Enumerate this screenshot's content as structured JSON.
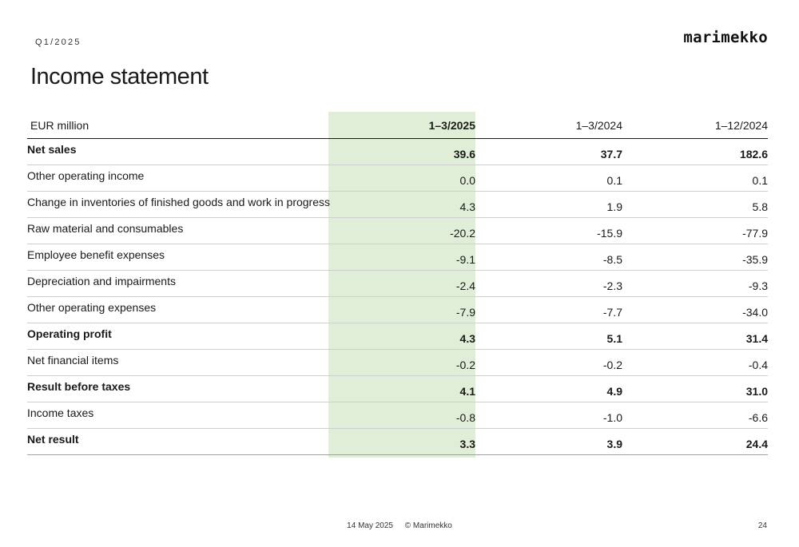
{
  "header": {
    "period": "Q1/2025",
    "logo": "marimekko",
    "title": "Income statement"
  },
  "table": {
    "columns": [
      "EUR million",
      "1–3/2025",
      "1–3/2024",
      "1–12/2024"
    ],
    "highlight_color": "#e1eed7",
    "rows": [
      {
        "label": "Net sales",
        "values": [
          "39.6",
          "37.7",
          "182.6"
        ],
        "bold": true
      },
      {
        "label": "Other operating income",
        "values": [
          "0.0",
          "0.1",
          "0.1"
        ],
        "bold": false
      },
      {
        "label": "Change in inventories of finished goods and work in progress",
        "values": [
          "4.3",
          "1.9",
          "5.8"
        ],
        "bold": false
      },
      {
        "label": "Raw material and consumables",
        "values": [
          "-20.2",
          "-15.9",
          "-77.9"
        ],
        "bold": false
      },
      {
        "label": "Employee benefit expenses",
        "values": [
          "-9.1",
          "-8.5",
          "-35.9"
        ],
        "bold": false
      },
      {
        "label": "Depreciation and impairments",
        "values": [
          "-2.4",
          "-2.3",
          "-9.3"
        ],
        "bold": false
      },
      {
        "label": "Other operating expenses",
        "values": [
          "-7.9",
          "-7.7",
          "-34.0"
        ],
        "bold": false
      },
      {
        "label": "Operating profit",
        "values": [
          "4.3",
          "5.1",
          "31.4"
        ],
        "bold": true
      },
      {
        "label": "Net financial items",
        "values": [
          "-0.2",
          "-0.2",
          "-0.4"
        ],
        "bold": false
      },
      {
        "label": "Result before taxes",
        "values": [
          "4.1",
          "4.9",
          "31.0"
        ],
        "bold": true
      },
      {
        "label": "Income taxes",
        "values": [
          "-0.8",
          "-1.0",
          "-6.6"
        ],
        "bold": false
      },
      {
        "label": "Net result",
        "values": [
          "3.3",
          "3.9",
          "24.4"
        ],
        "bold": true
      }
    ]
  },
  "footer": {
    "date": "14 May 2025",
    "copyright": "© Marimekko",
    "page": "24"
  }
}
